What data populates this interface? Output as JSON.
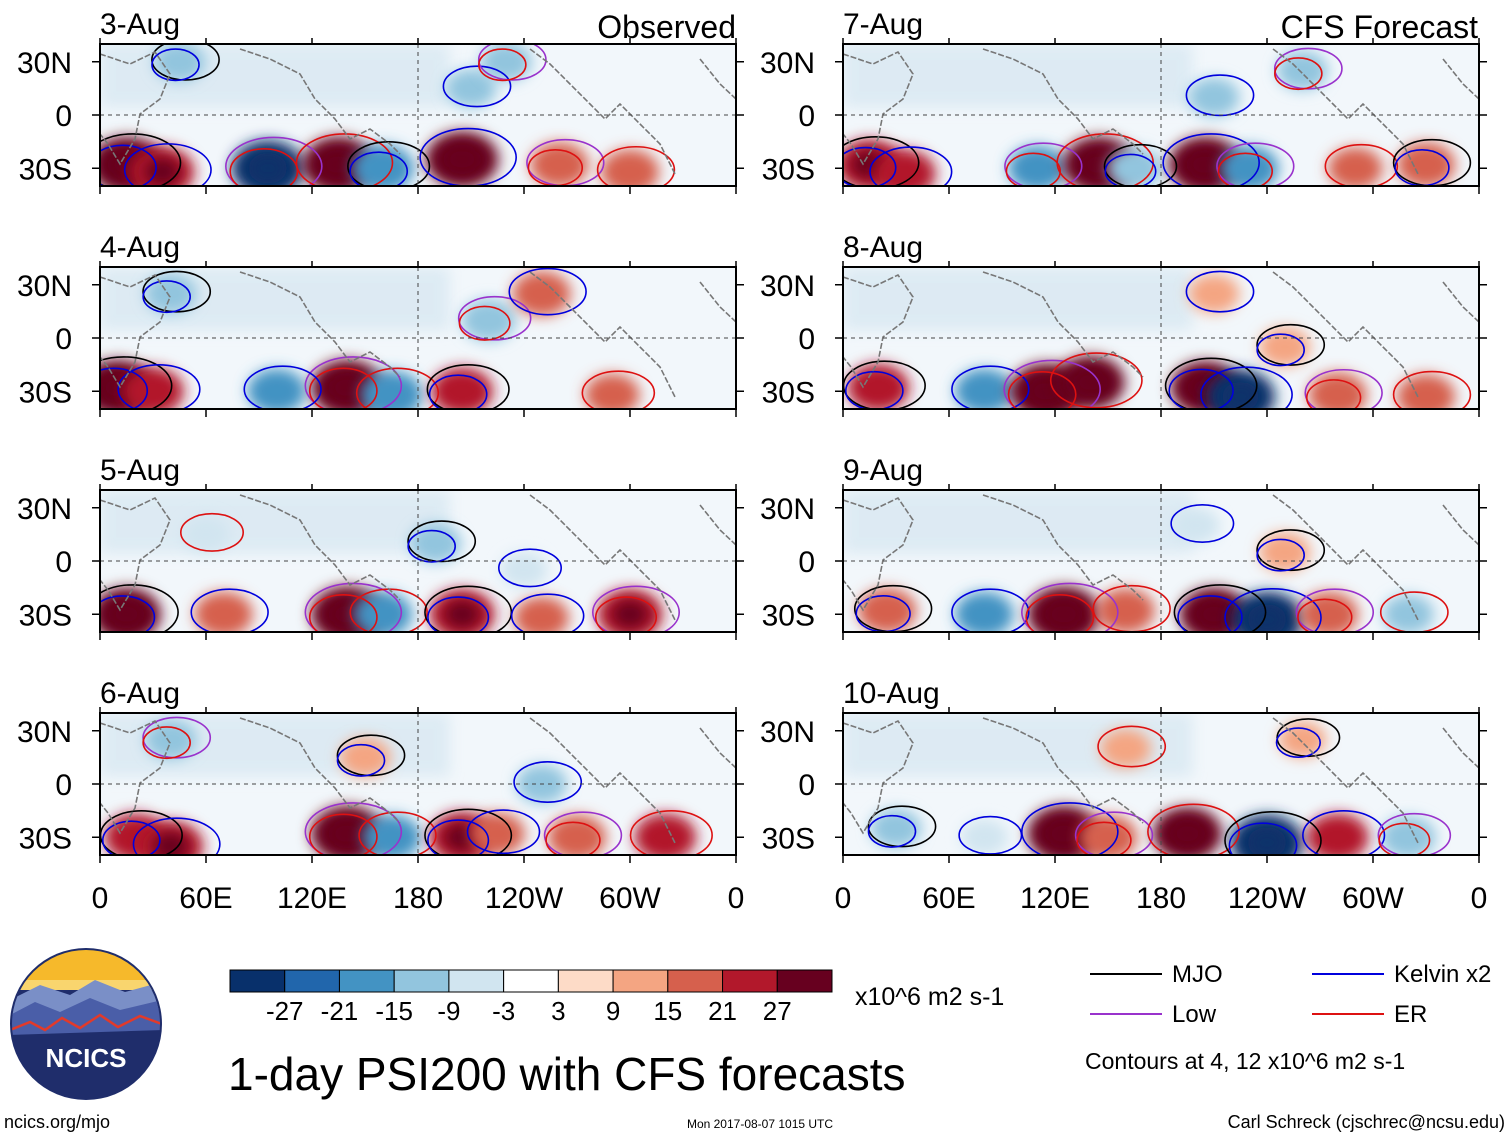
{
  "chart_data": {
    "type": "heatmap",
    "title": "1-day PSI200 with CFS forecasts",
    "x_ticks": [
      "0",
      "60E",
      "120E",
      "180",
      "120W",
      "60W",
      "0"
    ],
    "y_ticks": [
      "30N",
      "0",
      "30S"
    ],
    "units": "x10^6 m2 s-1",
    "left_label": "Observed",
    "right_label": "CFS Forecast",
    "panels_observed": [
      {
        "date": "3-Aug",
        "blobs": [
          [
            15,
            -28,
            1
          ],
          [
            35,
            -32,
            0.8
          ],
          [
            95,
            -30,
            -1
          ],
          [
            135,
            -28,
            1
          ],
          [
            160,
            -30,
            -0.7
          ],
          [
            205,
            -25,
            1
          ],
          [
            260,
            -28,
            0.6
          ],
          [
            300,
            -32,
            0.6
          ],
          [
            45,
            30,
            -0.4
          ],
          [
            210,
            15,
            -0.4
          ],
          [
            230,
            30,
            -0.4
          ]
        ]
      },
      {
        "date": "4-Aug",
        "blobs": [
          [
            10,
            -28,
            1
          ],
          [
            30,
            -30,
            0.7
          ],
          [
            140,
            -28,
            1
          ],
          [
            165,
            -32,
            -0.7
          ],
          [
            205,
            -30,
            0.7
          ],
          [
            100,
            -30,
            -0.6
          ],
          [
            220,
            10,
            -0.5
          ],
          [
            290,
            -32,
            0.5
          ],
          [
            40,
            25,
            -0.4
          ],
          [
            250,
            25,
            0.6
          ]
        ]
      },
      {
        "date": "5-Aug",
        "blobs": [
          [
            15,
            -30,
            0.9
          ],
          [
            70,
            -30,
            0.6
          ],
          [
            140,
            -30,
            1
          ],
          [
            160,
            -30,
            -0.6
          ],
          [
            205,
            -30,
            0.8
          ],
          [
            250,
            -32,
            0.5
          ],
          [
            300,
            -30,
            0.8
          ],
          [
            60,
            15,
            -0.3
          ],
          [
            190,
            10,
            -0.4
          ],
          [
            240,
            -5,
            -0.3
          ]
        ]
      },
      {
        "date": "6-Aug",
        "blobs": [
          [
            20,
            -30,
            0.7
          ],
          [
            40,
            -35,
            0.8
          ],
          [
            140,
            -28,
            1
          ],
          [
            165,
            -30,
            -0.6
          ],
          [
            205,
            -30,
            0.8
          ],
          [
            225,
            -28,
            0.5
          ],
          [
            270,
            -30,
            0.6
          ],
          [
            320,
            -30,
            0.7
          ],
          [
            150,
            15,
            0.4
          ],
          [
            250,
            0,
            -0.4
          ],
          [
            40,
            25,
            -0.4
          ]
        ]
      }
    ],
    "panels_forecast": [
      {
        "date": "7-Aug",
        "blobs": [
          [
            15,
            -28,
            0.8
          ],
          [
            35,
            -33,
            0.7
          ],
          [
            110,
            -30,
            -0.6
          ],
          [
            145,
            -28,
            1
          ],
          [
            165,
            -30,
            -0.5
          ],
          [
            205,
            -28,
            1
          ],
          [
            230,
            -30,
            -0.6
          ],
          [
            290,
            -30,
            0.5
          ],
          [
            330,
            -28,
            0.6
          ],
          [
            210,
            10,
            -0.4
          ],
          [
            260,
            25,
            -0.4
          ]
        ]
      },
      {
        "date": "8-Aug",
        "blobs": [
          [
            20,
            -28,
            0.7
          ],
          [
            80,
            -30,
            -0.6
          ],
          [
            115,
            -30,
            1
          ],
          [
            140,
            -25,
            0.9
          ],
          [
            205,
            -28,
            0.9
          ],
          [
            225,
            -33,
            -0.9
          ],
          [
            280,
            -32,
            0.6
          ],
          [
            330,
            -33,
            0.6
          ],
          [
            250,
            -5,
            0.4
          ],
          [
            210,
            25,
            0.4
          ]
        ]
      },
      {
        "date": "9-Aug",
        "blobs": [
          [
            25,
            -28,
            0.6
          ],
          [
            80,
            -30,
            -0.6
          ],
          [
            125,
            -30,
            1
          ],
          [
            160,
            -28,
            0.6
          ],
          [
            210,
            -30,
            0.9
          ],
          [
            240,
            -33,
            -1
          ],
          [
            275,
            -30,
            0.6
          ],
          [
            320,
            -30,
            -0.4
          ],
          [
            250,
            5,
            0.4
          ],
          [
            200,
            20,
            -0.3
          ]
        ]
      },
      {
        "date": "10-Aug",
        "blobs": [
          [
            30,
            -25,
            -0.4
          ],
          [
            125,
            -28,
            1
          ],
          [
            150,
            -30,
            0.6
          ],
          [
            195,
            -28,
            0.9
          ],
          [
            240,
            -33,
            -1
          ],
          [
            280,
            -30,
            0.7
          ],
          [
            320,
            -30,
            -0.5
          ],
          [
            160,
            20,
            0.4
          ],
          [
            260,
            25,
            0.3
          ],
          [
            80,
            -30,
            -0.3
          ]
        ]
      }
    ]
  },
  "colorbar": {
    "labels": [
      "-27",
      "-21",
      "-15",
      "-9",
      "-3",
      "3",
      "9",
      "15",
      "21",
      "27"
    ],
    "colors": [
      "#08306b",
      "#2166ac",
      "#4393c3",
      "#92c5de",
      "#d1e5f0",
      "#ffffff",
      "#fddbc7",
      "#f4a582",
      "#d6604d",
      "#b2182b",
      "#67001f"
    ]
  },
  "legend": {
    "items": [
      {
        "label": "MJO",
        "color": "#000000"
      },
      {
        "label": "Kelvin x2",
        "color": "#0000dd"
      },
      {
        "label": "Low",
        "color": "#9932cc"
      },
      {
        "label": "ER",
        "color": "#dd1111"
      }
    ],
    "note": "Contours at 4, 12 x10^6 m2 s-1"
  },
  "logo": {
    "text": "NCICS"
  },
  "footer": {
    "url": "ncics.org/mjo",
    "timestamp": "Mon 2017-08-07 1015 UTC",
    "credit": "Carl Schreck (cjschrec@ncsu.edu)"
  }
}
